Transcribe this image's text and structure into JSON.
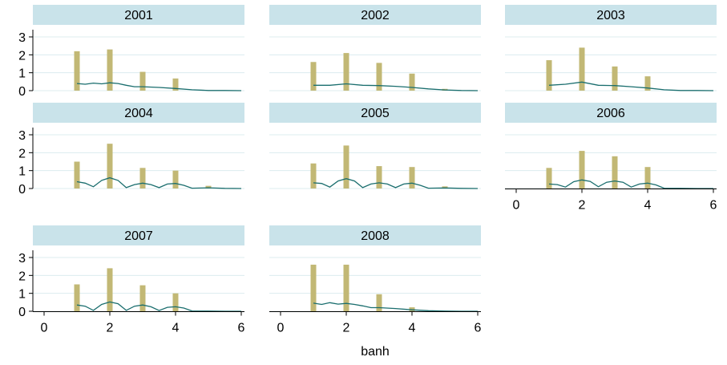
{
  "chart_data": {
    "type": "bar",
    "xlabel": "banh",
    "xlim": [
      0,
      6
    ],
    "ylim": [
      0,
      3
    ],
    "x_ticks": [
      0,
      2,
      4,
      6
    ],
    "y_ticks": [
      0,
      1,
      2,
      3
    ],
    "grid": true,
    "colors": {
      "bar": "#c2b875",
      "line": "#1a6e6e",
      "panel_header": "#c9e3ea",
      "grid": "#dcecef",
      "axis": "#000000"
    },
    "panels": [
      {
        "title": "2001",
        "bars": [
          {
            "x": 1,
            "y": 2.2
          },
          {
            "x": 2,
            "y": 2.3
          },
          {
            "x": 3,
            "y": 1.05
          },
          {
            "x": 4,
            "y": 0.68
          }
        ],
        "line": [
          [
            1,
            0.4
          ],
          [
            1.25,
            0.36
          ],
          [
            1.5,
            0.42
          ],
          [
            1.75,
            0.38
          ],
          [
            2,
            0.44
          ],
          [
            2.25,
            0.4
          ],
          [
            2.5,
            0.3
          ],
          [
            2.75,
            0.22
          ],
          [
            3,
            0.22
          ],
          [
            3.5,
            0.18
          ],
          [
            4,
            0.12
          ],
          [
            4.5,
            0.05
          ],
          [
            5,
            0.01
          ],
          [
            5.5,
            0.01
          ],
          [
            6,
            0.0
          ]
        ]
      },
      {
        "title": "2002",
        "bars": [
          {
            "x": 1,
            "y": 1.6
          },
          {
            "x": 2,
            "y": 2.1
          },
          {
            "x": 3,
            "y": 1.55
          },
          {
            "x": 4,
            "y": 0.95
          },
          {
            "x": 5,
            "y": 0.1
          }
        ],
        "line": [
          [
            1,
            0.3
          ],
          [
            1.5,
            0.3
          ],
          [
            2,
            0.38
          ],
          [
            2.5,
            0.3
          ],
          [
            3,
            0.28
          ],
          [
            3.5,
            0.24
          ],
          [
            4,
            0.18
          ],
          [
            4.5,
            0.1
          ],
          [
            5,
            0.04
          ],
          [
            5.5,
            0.01
          ],
          [
            6,
            0.0
          ]
        ]
      },
      {
        "title": "2003",
        "bars": [
          {
            "x": 1,
            "y": 1.7
          },
          {
            "x": 2,
            "y": 2.4
          },
          {
            "x": 3,
            "y": 1.35
          },
          {
            "x": 4,
            "y": 0.8
          }
        ],
        "line": [
          [
            1,
            0.3
          ],
          [
            1.5,
            0.36
          ],
          [
            2,
            0.48
          ],
          [
            2.5,
            0.3
          ],
          [
            3,
            0.28
          ],
          [
            3.5,
            0.22
          ],
          [
            4,
            0.15
          ],
          [
            4.5,
            0.05
          ],
          [
            5,
            0.01
          ],
          [
            5.5,
            0.01
          ],
          [
            6,
            0.0
          ]
        ]
      },
      {
        "title": "2004",
        "bars": [
          {
            "x": 1,
            "y": 1.5
          },
          {
            "x": 2,
            "y": 2.5
          },
          {
            "x": 3,
            "y": 1.15
          },
          {
            "x": 4,
            "y": 1.0
          },
          {
            "x": 5,
            "y": 0.15
          }
        ],
        "line": [
          [
            1,
            0.38
          ],
          [
            1.25,
            0.3
          ],
          [
            1.5,
            0.1
          ],
          [
            1.75,
            0.45
          ],
          [
            2,
            0.6
          ],
          [
            2.25,
            0.45
          ],
          [
            2.5,
            0.05
          ],
          [
            2.75,
            0.22
          ],
          [
            3,
            0.3
          ],
          [
            3.25,
            0.22
          ],
          [
            3.5,
            0.05
          ],
          [
            3.75,
            0.25
          ],
          [
            4,
            0.28
          ],
          [
            4.25,
            0.18
          ],
          [
            4.5,
            0.02
          ],
          [
            5,
            0.04
          ],
          [
            5.5,
            0.01
          ],
          [
            6,
            0.0
          ]
        ]
      },
      {
        "title": "2005",
        "bars": [
          {
            "x": 1,
            "y": 1.4
          },
          {
            "x": 2,
            "y": 2.4
          },
          {
            "x": 3,
            "y": 1.25
          },
          {
            "x": 4,
            "y": 1.2
          },
          {
            "x": 5,
            "y": 0.12
          }
        ],
        "line": [
          [
            1,
            0.32
          ],
          [
            1.25,
            0.28
          ],
          [
            1.5,
            0.08
          ],
          [
            1.75,
            0.42
          ],
          [
            2,
            0.55
          ],
          [
            2.25,
            0.42
          ],
          [
            2.5,
            0.05
          ],
          [
            2.75,
            0.25
          ],
          [
            3,
            0.32
          ],
          [
            3.25,
            0.25
          ],
          [
            3.5,
            0.05
          ],
          [
            3.75,
            0.25
          ],
          [
            4,
            0.3
          ],
          [
            4.25,
            0.18
          ],
          [
            4.5,
            0.02
          ],
          [
            5,
            0.03
          ],
          [
            5.5,
            0.01
          ],
          [
            6,
            0.0
          ]
        ]
      },
      {
        "title": "2006",
        "bars": [
          {
            "x": 1,
            "y": 1.15
          },
          {
            "x": 2,
            "y": 2.1
          },
          {
            "x": 3,
            "y": 1.8
          },
          {
            "x": 4,
            "y": 1.2
          }
        ],
        "line": [
          [
            1,
            0.25
          ],
          [
            1.25,
            0.22
          ],
          [
            1.5,
            0.08
          ],
          [
            1.75,
            0.38
          ],
          [
            2,
            0.48
          ],
          [
            2.25,
            0.4
          ],
          [
            2.5,
            0.1
          ],
          [
            2.75,
            0.35
          ],
          [
            3,
            0.42
          ],
          [
            3.25,
            0.35
          ],
          [
            3.5,
            0.08
          ],
          [
            3.75,
            0.25
          ],
          [
            4,
            0.3
          ],
          [
            4.25,
            0.2
          ],
          [
            4.5,
            0.02
          ],
          [
            5,
            0.01
          ],
          [
            5.5,
            0.0
          ],
          [
            6,
            0.0
          ]
        ]
      },
      {
        "title": "2007",
        "bars": [
          {
            "x": 1,
            "y": 1.5
          },
          {
            "x": 2,
            "y": 2.4
          },
          {
            "x": 3,
            "y": 1.45
          },
          {
            "x": 4,
            "y": 1.0
          }
        ],
        "line": [
          [
            1,
            0.35
          ],
          [
            1.25,
            0.28
          ],
          [
            1.5,
            0.05
          ],
          [
            1.75,
            0.38
          ],
          [
            2,
            0.52
          ],
          [
            2.25,
            0.42
          ],
          [
            2.5,
            0.05
          ],
          [
            2.75,
            0.28
          ],
          [
            3,
            0.35
          ],
          [
            3.25,
            0.25
          ],
          [
            3.5,
            0.04
          ],
          [
            3.75,
            0.22
          ],
          [
            4,
            0.25
          ],
          [
            4.25,
            0.18
          ],
          [
            4.5,
            0.02
          ],
          [
            5,
            0.01
          ],
          [
            5.5,
            0.0
          ],
          [
            6,
            0.0
          ]
        ]
      },
      {
        "title": "2008",
        "bars": [
          {
            "x": 1,
            "y": 2.6
          },
          {
            "x": 2,
            "y": 2.6
          },
          {
            "x": 3,
            "y": 0.95
          },
          {
            "x": 4,
            "y": 0.22
          }
        ],
        "line": [
          [
            1,
            0.45
          ],
          [
            1.25,
            0.38
          ],
          [
            1.5,
            0.48
          ],
          [
            1.75,
            0.4
          ],
          [
            2,
            0.44
          ],
          [
            2.25,
            0.38
          ],
          [
            2.5,
            0.3
          ],
          [
            2.75,
            0.2
          ],
          [
            3,
            0.2
          ],
          [
            3.5,
            0.15
          ],
          [
            4,
            0.08
          ],
          [
            4.5,
            0.03
          ],
          [
            5,
            0.01
          ],
          [
            5.5,
            0.0
          ],
          [
            6,
            0.0
          ]
        ]
      }
    ]
  }
}
